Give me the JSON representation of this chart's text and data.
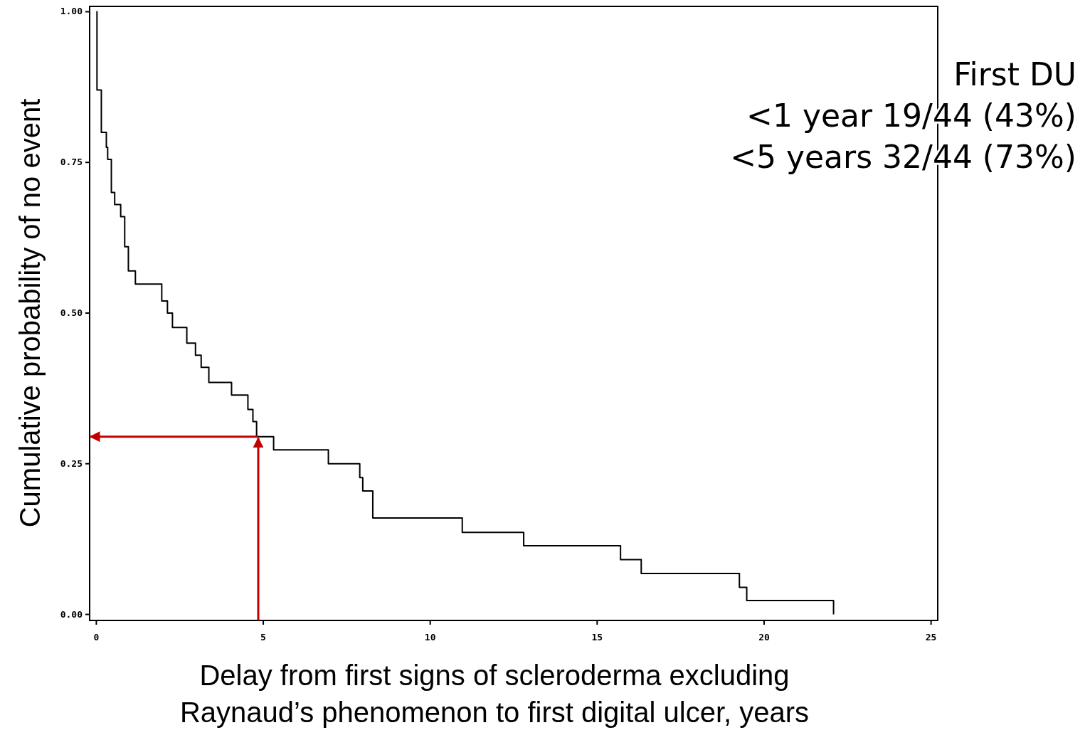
{
  "chart_data": {
    "type": "step",
    "xlabel": "Delay from first signs of scleroderma excluding Raynaud’s phenomenon to first digital ulcer, years",
    "ylabel": "Cumulative probability of no event",
    "annotations": [
      "First DU",
      "<1 year 19/44 (43%)",
      "<5 years 32/44 (73%)"
    ],
    "x": [
      0,
      0.02,
      0.15,
      0.3,
      0.34,
      0.45,
      0.55,
      0.73,
      0.85,
      0.96,
      1.17,
      1.96,
      2.13,
      2.28,
      2.71,
      2.97,
      3.14,
      3.37,
      4.05,
      4.54,
      4.69,
      4.8,
      5.31,
      6.95,
      7.89,
      7.98,
      8.28,
      10.96,
      12.8,
      15.7,
      16.32,
      19.26,
      19.48,
      22.08
    ],
    "series": [
      {
        "color": "#000000",
        "values": [
          1.0,
          0.87,
          0.8,
          0.775,
          0.755,
          0.7,
          0.68,
          0.66,
          0.61,
          0.57,
          0.548,
          0.52,
          0.5,
          0.476,
          0.45,
          0.43,
          0.41,
          0.385,
          0.364,
          0.34,
          0.32,
          0.295,
          0.273,
          0.25,
          0.227,
          0.205,
          0.16,
          0.136,
          0.114,
          0.091,
          0.068,
          0.045,
          0.023,
          0.0
        ]
      }
    ],
    "ref_lines": [
      {
        "axis": "x",
        "value": 4.85,
        "color": "#c00000"
      },
      {
        "axis": "y",
        "value": 0.295,
        "color": "#c00000"
      }
    ],
    "xlim": [
      -0.2,
      25.2
    ],
    "ylim": [
      -0.01,
      1.01
    ],
    "xticks": [
      0,
      5,
      10,
      15,
      20,
      25
    ],
    "yticks": [
      {
        "value": 0,
        "label": "0.00"
      },
      {
        "value": 0.25,
        "label": "0.25"
      },
      {
        "value": 0.5,
        "label": "0.50"
      },
      {
        "value": 0.75,
        "label": "0.75"
      },
      {
        "value": 1,
        "label": "1.00"
      }
    ],
    "grid": false
  }
}
